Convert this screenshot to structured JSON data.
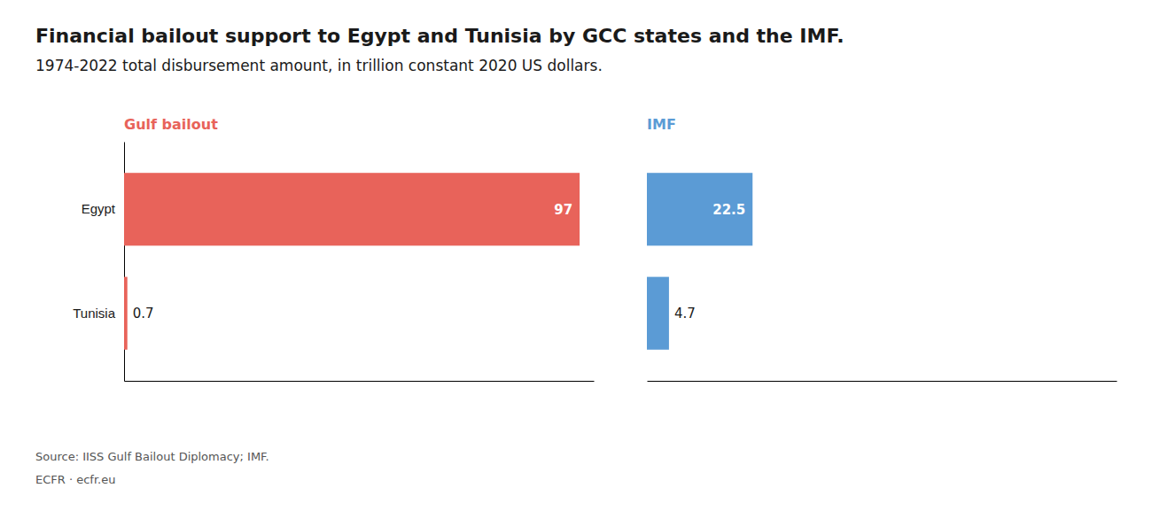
{
  "chart_data": {
    "type": "bar",
    "orientation": "horizontal",
    "title": "Financial bailout support to Egypt and Tunisia by GCC states and the IMF.",
    "subtitle": "1974-2022 total disbursement amount, in trillion constant 2020 US dollars.",
    "categories": [
      "Egypt",
      "Tunisia"
    ],
    "series": [
      {
        "name": "Gulf bailout",
        "color": "#E8635A",
        "values": [
          97,
          0.7
        ]
      },
      {
        "name": "IMF",
        "color": "#5B9BD5",
        "values": [
          22.5,
          4.7
        ]
      }
    ],
    "xlim": [
      0,
      100
    ],
    "data_labels": true,
    "tick_labels": "y",
    "annotations": [
      "Source: IISS Gulf Bailout Diplomacy; IMF.",
      "ECFR · ecfr.eu"
    ]
  }
}
